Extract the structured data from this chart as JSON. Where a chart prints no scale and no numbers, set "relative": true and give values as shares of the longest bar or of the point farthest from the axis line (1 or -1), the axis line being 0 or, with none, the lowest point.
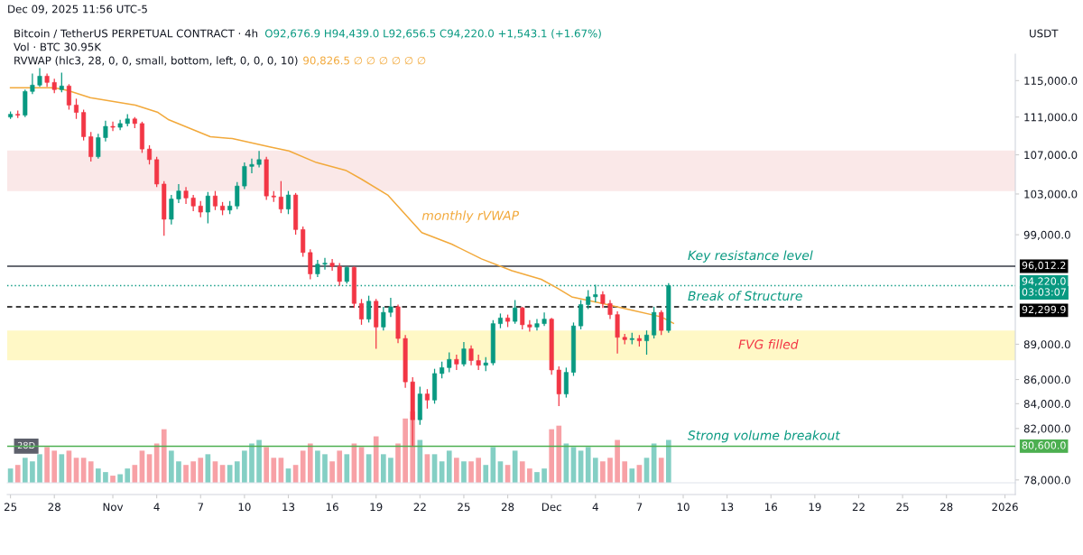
{
  "chart_data": [
    {
      "type": "candlestick",
      "title": "Bitcoin / TetherUS PERPETUAL CONTRACT · 4h",
      "subtitle": "O92,676.9 H94,439.0 L92,656.5 C94,220.0 +1,543.1 (+1.67%)",
      "ylabel": "USDT",
      "x": [
        "2025-10-25T00:00",
        "2025-10-25T12:00",
        "2025-10-26T00:00",
        "2025-10-26T12:00",
        "2025-10-27T00:00",
        "2025-10-27T12:00",
        "2025-10-28T00:00",
        "2025-10-28T12:00",
        "2025-10-29T00:00",
        "2025-10-29T12:00",
        "2025-10-30T00:00",
        "2025-10-30T12:00",
        "2025-10-31T00:00",
        "2025-10-31T12:00",
        "2025-11-01T00:00",
        "2025-11-01T12:00",
        "2025-11-02T00:00",
        "2025-11-02T12:00",
        "2025-11-03T00:00",
        "2025-11-03T12:00",
        "2025-11-04T00:00",
        "2025-11-04T12:00",
        "2025-11-05T00:00",
        "2025-11-05T12:00",
        "2025-11-06T00:00",
        "2025-11-06T12:00",
        "2025-11-07T00:00",
        "2025-11-07T12:00",
        "2025-11-08T00:00",
        "2025-11-08T12:00",
        "2025-11-09T00:00",
        "2025-11-09T12:00",
        "2025-11-10T00:00",
        "2025-11-10T12:00",
        "2025-11-11T00:00",
        "2025-11-11T12:00",
        "2025-11-12T00:00",
        "2025-11-12T12:00",
        "2025-11-13T00:00",
        "2025-11-13T12:00",
        "2025-11-14T00:00",
        "2025-11-14T12:00",
        "2025-11-15T00:00",
        "2025-11-15T12:00",
        "2025-11-16T00:00",
        "2025-11-16T12:00",
        "2025-11-17T00:00",
        "2025-11-17T12:00",
        "2025-11-18T00:00",
        "2025-11-18T12:00",
        "2025-11-19T00:00",
        "2025-11-19T12:00",
        "2025-11-20T00:00",
        "2025-11-20T12:00",
        "2025-11-21T00:00",
        "2025-11-21T12:00",
        "2025-11-22T00:00",
        "2025-11-22T12:00",
        "2025-11-23T00:00",
        "2025-11-23T12:00",
        "2025-11-24T00:00",
        "2025-11-24T12:00",
        "2025-11-25T00:00",
        "2025-11-25T12:00",
        "2025-11-26T00:00",
        "2025-11-26T12:00",
        "2025-11-27T00:00",
        "2025-11-27T12:00",
        "2025-11-28T00:00",
        "2025-11-28T12:00",
        "2025-11-29T00:00",
        "2025-11-29T12:00",
        "2025-11-30T00:00",
        "2025-11-30T12:00",
        "2025-12-01T00:00",
        "2025-12-01T12:00",
        "2025-12-02T00:00",
        "2025-12-02T12:00",
        "2025-12-03T00:00",
        "2025-12-03T12:00",
        "2025-12-04T00:00",
        "2025-12-04T12:00",
        "2025-12-05T00:00",
        "2025-12-05T12:00",
        "2025-12-06T00:00",
        "2025-12-06T12:00",
        "2025-12-07T00:00",
        "2025-12-07T12:00",
        "2025-12-08T00:00",
        "2025-12-08T12:00",
        "2025-12-09T00:00"
      ],
      "ohlc": [
        [
          111000,
          111600,
          110800,
          111300
        ],
        [
          111300,
          111700,
          110900,
          111200
        ],
        [
          111200,
          114000,
          111000,
          113800
        ],
        [
          113800,
          115800,
          113500,
          114500
        ],
        [
          114500,
          116400,
          114300,
          115500
        ],
        [
          115500,
          115800,
          114300,
          114800
        ],
        [
          114800,
          115200,
          113600,
          114000
        ],
        [
          114000,
          115900,
          113700,
          114400
        ],
        [
          114400,
          114600,
          111800,
          112300
        ],
        [
          112300,
          113000,
          110800,
          111500
        ],
        [
          111500,
          111800,
          108500,
          108900
        ],
        [
          108900,
          109400,
          106300,
          106800
        ],
        [
          106800,
          109200,
          106600,
          108800
        ],
        [
          108800,
          110600,
          108400,
          110000
        ],
        [
          110000,
          110500,
          109500,
          109900
        ],
        [
          109900,
          110700,
          109600,
          110300
        ],
        [
          110300,
          111300,
          110000,
          110800
        ],
        [
          110800,
          111000,
          109800,
          110300
        ],
        [
          110300,
          110500,
          107200,
          107600
        ],
        [
          107600,
          108000,
          106000,
          106500
        ],
        [
          106500,
          106800,
          103700,
          104000
        ],
        [
          104000,
          104300,
          98900,
          100500
        ],
        [
          100500,
          102900,
          100000,
          102500
        ],
        [
          102500,
          104000,
          102100,
          103300
        ],
        [
          103300,
          103700,
          102000,
          102600
        ],
        [
          102600,
          102900,
          101300,
          101800
        ],
        [
          101800,
          102300,
          100700,
          101200
        ],
        [
          101200,
          103200,
          100100,
          102800
        ],
        [
          102800,
          103300,
          101400,
          101800
        ],
        [
          101800,
          102200,
          100900,
          101400
        ],
        [
          101400,
          102300,
          101000,
          101800
        ],
        [
          101800,
          104200,
          101500,
          103800
        ],
        [
          103800,
          106200,
          103500,
          105800
        ],
        [
          105800,
          106600,
          105100,
          106000
        ],
        [
          106000,
          107400,
          105700,
          106500
        ],
        [
          106500,
          106800,
          102400,
          102800
        ],
        [
          102800,
          103300,
          102200,
          102700
        ],
        [
          102700,
          104300,
          101100,
          101500
        ],
        [
          101500,
          103300,
          101000,
          102900
        ],
        [
          102900,
          103100,
          99000,
          99500
        ],
        [
          99500,
          99800,
          96900,
          97300
        ],
        [
          97300,
          97600,
          94800,
          95300
        ],
        [
          95300,
          96600,
          95000,
          96200
        ],
        [
          96200,
          96800,
          95700,
          96300
        ],
        [
          96300,
          96700,
          95600,
          96000
        ],
        [
          96000,
          96300,
          94200,
          94600
        ],
        [
          94600,
          96000,
          94400,
          95900
        ],
        [
          95900,
          96000,
          92200,
          92600
        ],
        [
          92600,
          93000,
          90700,
          91200
        ],
        [
          91200,
          93300,
          90900,
          92800
        ],
        [
          92800,
          93000,
          88600,
          90500
        ],
        [
          90500,
          92300,
          90200,
          91800
        ],
        [
          91800,
          93100,
          91400,
          92300
        ],
        [
          92300,
          92500,
          89100,
          89500
        ],
        [
          89500,
          89800,
          85300,
          85800
        ],
        [
          85800,
          86200,
          80600,
          82700
        ],
        [
          82700,
          85400,
          82300,
          84800
        ],
        [
          84800,
          85200,
          83600,
          84300
        ],
        [
          84300,
          86900,
          84000,
          86500
        ],
        [
          86500,
          87500,
          86100,
          87000
        ],
        [
          87000,
          88300,
          86600,
          87700
        ],
        [
          87700,
          88100,
          86800,
          87300
        ],
        [
          87300,
          89200,
          87100,
          88600
        ],
        [
          88600,
          88900,
          87200,
          87600
        ],
        [
          87600,
          88100,
          86800,
          87200
        ],
        [
          87200,
          87900,
          86700,
          87400
        ],
        [
          87400,
          91100,
          87200,
          90800
        ],
        [
          90800,
          91700,
          90400,
          91300
        ],
        [
          91300,
          91600,
          90500,
          91000
        ],
        [
          91000,
          92900,
          90800,
          92200
        ],
        [
          92200,
          92300,
          90300,
          90700
        ],
        [
          90700,
          91100,
          90100,
          90500
        ],
        [
          90500,
          91200,
          90200,
          90800
        ],
        [
          90800,
          91800,
          90600,
          91200
        ],
        [
          91200,
          91300,
          86400,
          86800
        ],
        [
          86800,
          87100,
          83800,
          84800
        ],
        [
          84800,
          87000,
          84500,
          86600
        ],
        [
          86600,
          90900,
          86300,
          90600
        ],
        [
          90600,
          92900,
          90300,
          92500
        ],
        [
          92500,
          93800,
          92100,
          93200
        ],
        [
          93200,
          94300,
          92700,
          93400
        ],
        [
          93400,
          93700,
          92200,
          92600
        ],
        [
          92600,
          92900,
          91200,
          91600
        ],
        [
          91600,
          91900,
          88200,
          89600
        ],
        [
          89600,
          89900,
          89000,
          89400
        ],
        [
          89400,
          90000,
          89000,
          89500
        ],
        [
          89500,
          89800,
          88800,
          89300
        ],
        [
          89300,
          90200,
          88100,
          89800
        ],
        [
          89800,
          92300,
          89500,
          91800
        ],
        [
          91800,
          92000,
          89800,
          90200
        ],
        [
          90200,
          94439,
          90000,
          94220
        ]
      ],
      "colors": [
        "#089981",
        "#f23645",
        "#089981",
        "#089981",
        "#089981",
        "#f23645",
        "#f23645",
        "#089981",
        "#f23645",
        "#f23645",
        "#f23645",
        "#f23645",
        "#089981",
        "#089981",
        "#f23645",
        "#089981",
        "#089981",
        "#f23645",
        "#f23645",
        "#f23645",
        "#f23645",
        "#f23645",
        "#089981",
        "#089981",
        "#f23645",
        "#f23645",
        "#f23645",
        "#089981",
        "#f23645",
        "#f23645",
        "#089981",
        "#089981",
        "#089981",
        "#089981",
        "#089981",
        "#f23645",
        "#f23645",
        "#f23645",
        "#089981",
        "#f23645",
        "#f23645",
        "#f23645",
        "#089981",
        "#089981",
        "#f23645",
        "#f23645",
        "#089981",
        "#f23645",
        "#f23645",
        "#089981",
        "#f23645",
        "#089981",
        "#089981",
        "#f23645",
        "#f23645",
        "#f23645",
        "#089981",
        "#f23645",
        "#089981",
        "#089981",
        "#089981",
        "#f23645",
        "#089981",
        "#f23645",
        "#f23645",
        "#089981",
        "#089981",
        "#089981",
        "#f23645",
        "#089981",
        "#f23645",
        "#f23645",
        "#089981",
        "#089981",
        "#f23645",
        "#f23645",
        "#089981",
        "#089981",
        "#089981",
        "#089981",
        "#089981",
        "#f23645",
        "#f23645",
        "#f23645",
        "#f23645",
        "#089981",
        "#f23645",
        "#089981",
        "#089981",
        "#f23645",
        "#089981"
      ],
      "series": [
        {
          "type": "line",
          "name": "monthly rVWAP",
          "color": "#f2a93b",
          "x": [
            "2025-10-25T00:00",
            "2025-10-28T00:00",
            "2025-10-28T22:00",
            "2025-10-30T11:00",
            "2025-11-02T13:00",
            "2025-11-04T02:00",
            "2025-11-04T20:00",
            "2025-11-07T16:00",
            "2025-11-09T04:00",
            "2025-11-11T19:00",
            "2025-11-13T01:00",
            "2025-11-14T22:00",
            "2025-11-16T22:00",
            "2025-11-18T00:00",
            "2025-11-19T19:00",
            "2025-11-22T03:00",
            "2025-11-24T04:00",
            "2025-11-26T05:00",
            "2025-11-28T07:00",
            "2025-11-30T07:00",
            "2025-12-01T09:00",
            "2025-12-02T09:00",
            "2025-12-04T11:00",
            "2025-12-06T12:00",
            "2025-12-08T12:00",
            "2025-12-09T08:00"
          ],
          "values": [
            114200,
            114200,
            113900,
            113100,
            112300,
            111500,
            110700,
            108900,
            108700,
            107800,
            107400,
            106200,
            105400,
            104500,
            102900,
            99200,
            98100,
            96700,
            95600,
            94800,
            94000,
            93200,
            92600,
            92000,
            91400,
            90826.5
          ]
        }
      ],
      "xlim": [
        "2025-10-24T18:40",
        "2026-01-01T17:00"
      ],
      "xticks": [
        {
          "value": "2025-10-25",
          "label": "25"
        },
        {
          "value": "2025-10-28",
          "label": "28"
        },
        {
          "value": "2025-11-01",
          "label": "Nov"
        },
        {
          "value": "2025-11-04",
          "label": "4"
        },
        {
          "value": "2025-11-07",
          "label": "7"
        },
        {
          "value": "2025-11-10",
          "label": "10"
        },
        {
          "value": "2025-11-13",
          "label": "13"
        },
        {
          "value": "2025-11-16",
          "label": "16"
        },
        {
          "value": "2025-11-19",
          "label": "19"
        },
        {
          "value": "2025-11-22",
          "label": "22"
        },
        {
          "value": "2025-11-25",
          "label": "25"
        },
        {
          "value": "2025-11-28",
          "label": "28"
        },
        {
          "value": "2025-12-01",
          "label": "Dec"
        },
        {
          "value": "2025-12-04",
          "label": "4"
        },
        {
          "value": "2025-12-07",
          "label": "7"
        },
        {
          "value": "2025-12-10",
          "label": "10"
        },
        {
          "value": "2025-12-13",
          "label": "13"
        },
        {
          "value": "2025-12-16",
          "label": "16"
        },
        {
          "value": "2025-12-19",
          "label": "19"
        },
        {
          "value": "2025-12-22",
          "label": "22"
        },
        {
          "value": "2025-12-25",
          "label": "25"
        },
        {
          "value": "2025-12-28",
          "label": "28"
        },
        {
          "value": "2026-01-01",
          "label": "2026"
        }
      ],
      "log": "y",
      "ylim": [
        76900,
        118000
      ],
      "yticks": [
        {
          "value": 78000,
          "label": "78,000.0"
        },
        {
          "value": 82000,
          "label": "82,000.0"
        },
        {
          "value": 84000,
          "label": "84,000.0"
        },
        {
          "value": 86000,
          "label": "86,000.0"
        },
        {
          "value": 89000,
          "label": "89,000.0"
        },
        {
          "value": 99000,
          "label": "99,000.0"
        },
        {
          "value": 103000,
          "label": "103,000.0"
        },
        {
          "value": 107000,
          "label": "107,000.0"
        },
        {
          "value": 111000,
          "label": "111,000.0"
        },
        {
          "value": 115000,
          "label": "115,000.0"
        }
      ],
      "grid": false,
      "ref_lines": [
        {
          "axis": "y",
          "value": 96012.2,
          "label": "Key resistance level",
          "color": "#363a45",
          "line_style": "solid"
        },
        {
          "axis": "y",
          "value": 94220,
          "color": "#089981",
          "line_style": "dotted"
        },
        {
          "axis": "y",
          "value": 92299.9,
          "label": "Break of Structure",
          "color": "#000000",
          "line_style": "dashed"
        },
        {
          "axis": "y",
          "value": 80600,
          "label": "Strong volume breakout",
          "color": "#4caf50",
          "line_style": "solid"
        }
      ],
      "bands": [
        {
          "axis": "y",
          "from": 103300,
          "to": 107460,
          "color": "#f7d9d9"
        },
        {
          "axis": "y",
          "from": 87620,
          "to": 90190,
          "label": "FVG filled",
          "color": "#fff3a0"
        }
      ],
      "annotations": [
        "Dec 09, 2025 11:56 UTC-5",
        "RVWAP (hlc3, 28, 0, 0, small, bottom, left, 0, 0, 0, 10)",
        "90,826.5 ∅ ∅ ∅ ∅ ∅ ∅",
        "96,012.2",
        "94,220.0",
        "03:03:07",
        "92,299.9",
        "80,600.0"
      ]
    },
    {
      "type": "bar",
      "title": "Vol · BTC 30.95K",
      "relative": true,
      "tick_labels": false,
      "categories": [
        null,
        null,
        null,
        null,
        null,
        null,
        null,
        null,
        null,
        null,
        null,
        null,
        null,
        null,
        null,
        null,
        null,
        null,
        null,
        null,
        null,
        null,
        null,
        null,
        null,
        null,
        null,
        null,
        null,
        null,
        null,
        null,
        null,
        null,
        null,
        null,
        null,
        null,
        null,
        null,
        null,
        null,
        null,
        null,
        null,
        null,
        null,
        null,
        null,
        null,
        null,
        null,
        null,
        null,
        null,
        null,
        null,
        null,
        null,
        null,
        null,
        null,
        null,
        null,
        null,
        null,
        null,
        null,
        null,
        null,
        null,
        null,
        null,
        null,
        null,
        null,
        null,
        null,
        null,
        null,
        null,
        null,
        null,
        null,
        null,
        null,
        null,
        null,
        null,
        null,
        null
      ],
      "values": [
        0.2,
        0.25,
        0.35,
        0.3,
        0.4,
        0.5,
        0.45,
        0.4,
        0.45,
        0.35,
        0.35,
        0.3,
        0.2,
        0.15,
        0.1,
        0.12,
        0.2,
        0.25,
        0.45,
        0.4,
        0.55,
        0.75,
        0.45,
        0.3,
        0.25,
        0.3,
        0.35,
        0.4,
        0.3,
        0.25,
        0.25,
        0.3,
        0.45,
        0.55,
        0.6,
        0.5,
        0.35,
        0.35,
        0.2,
        0.25,
        0.45,
        0.55,
        0.45,
        0.4,
        0.3,
        0.45,
        0.4,
        0.55,
        0.5,
        0.4,
        0.65,
        0.4,
        0.35,
        0.55,
        0.9,
        1.0,
        0.6,
        0.4,
        0.4,
        0.3,
        0.45,
        0.35,
        0.3,
        0.3,
        0.35,
        0.25,
        0.5,
        0.3,
        0.25,
        0.45,
        0.3,
        0.2,
        0.15,
        0.2,
        0.75,
        0.8,
        0.55,
        0.5,
        0.45,
        0.5,
        0.35,
        0.3,
        0.35,
        0.6,
        0.3,
        0.2,
        0.25,
        0.35,
        0.55,
        0.35,
        0.6
      ],
      "colors": [
        "#84cfc4",
        "#f7a1a6",
        "#84cfc4",
        "#84cfc4",
        "#84cfc4",
        "#f7a1a6",
        "#f7a1a6",
        "#84cfc4",
        "#f7a1a6",
        "#f7a1a6",
        "#f7a1a6",
        "#f7a1a6",
        "#84cfc4",
        "#84cfc4",
        "#f7a1a6",
        "#84cfc4",
        "#84cfc4",
        "#f7a1a6",
        "#f7a1a6",
        "#f7a1a6",
        "#f7a1a6",
        "#f7a1a6",
        "#84cfc4",
        "#84cfc4",
        "#f7a1a6",
        "#f7a1a6",
        "#f7a1a6",
        "#84cfc4",
        "#f7a1a6",
        "#f7a1a6",
        "#84cfc4",
        "#84cfc4",
        "#84cfc4",
        "#84cfc4",
        "#84cfc4",
        "#f7a1a6",
        "#f7a1a6",
        "#f7a1a6",
        "#84cfc4",
        "#f7a1a6",
        "#f7a1a6",
        "#f7a1a6",
        "#84cfc4",
        "#84cfc4",
        "#f7a1a6",
        "#f7a1a6",
        "#84cfc4",
        "#f7a1a6",
        "#f7a1a6",
        "#84cfc4",
        "#f7a1a6",
        "#84cfc4",
        "#84cfc4",
        "#f7a1a6",
        "#f7a1a6",
        "#f7a1a6",
        "#84cfc4",
        "#f7a1a6",
        "#84cfc4",
        "#84cfc4",
        "#84cfc4",
        "#f7a1a6",
        "#84cfc4",
        "#f7a1a6",
        "#f7a1a6",
        "#84cfc4",
        "#84cfc4",
        "#84cfc4",
        "#f7a1a6",
        "#84cfc4",
        "#f7a1a6",
        "#f7a1a6",
        "#84cfc4",
        "#84cfc4",
        "#f7a1a6",
        "#f7a1a6",
        "#84cfc4",
        "#84cfc4",
        "#84cfc4",
        "#84cfc4",
        "#84cfc4",
        "#f7a1a6",
        "#f7a1a6",
        "#f7a1a6",
        "#f7a1a6",
        "#84cfc4",
        "#f7a1a6",
        "#84cfc4",
        "#84cfc4",
        "#f7a1a6",
        "#84cfc4"
      ],
      "annotations": [
        "28D"
      ]
    }
  ]
}
